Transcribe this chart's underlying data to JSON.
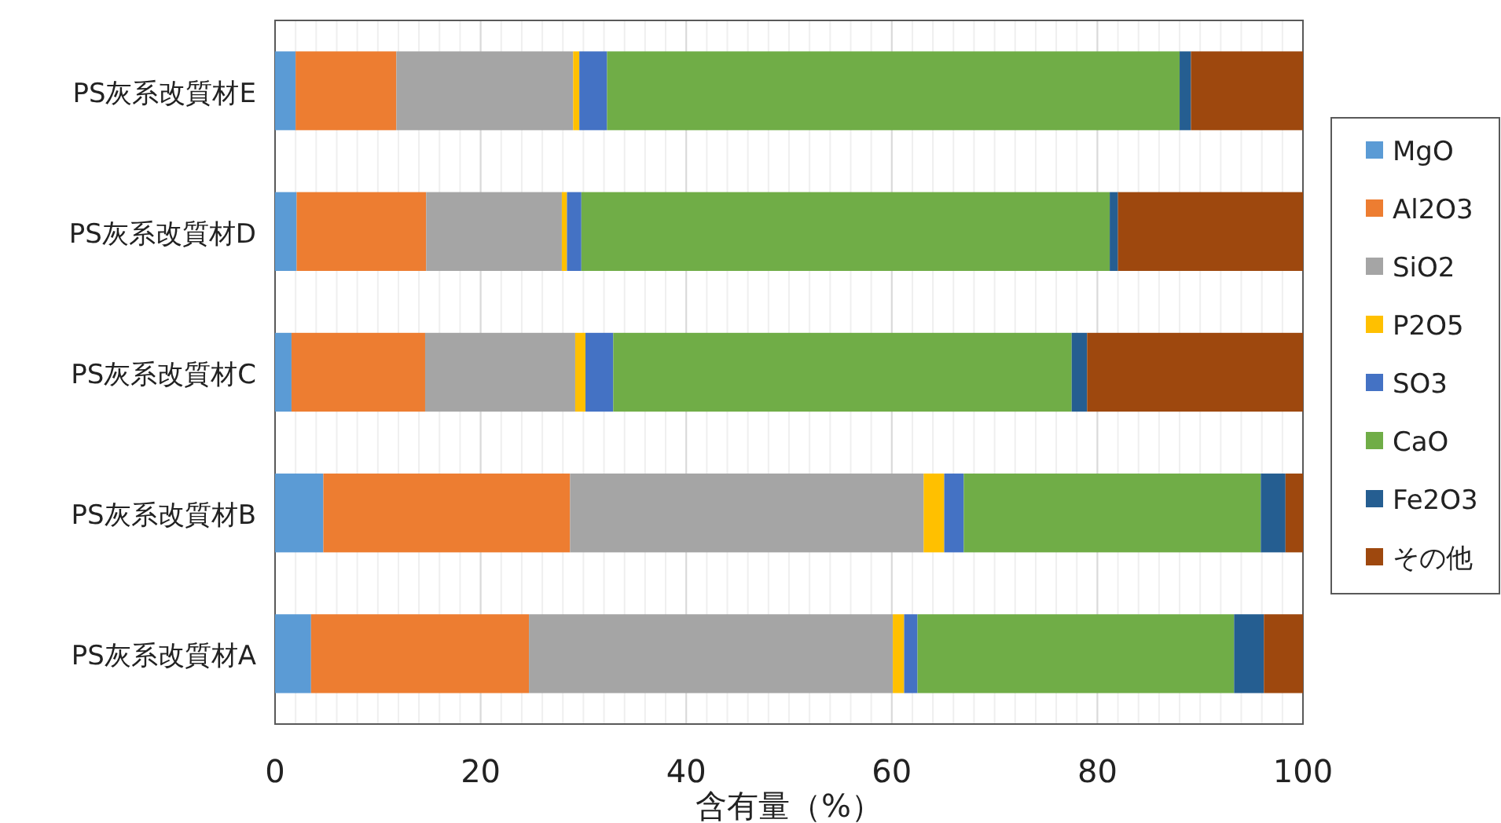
{
  "chart_data": {
    "type": "bar",
    "orientation": "horizontal",
    "stacked": true,
    "xlabel": "含有量（%）",
    "categories": [
      "PS灰系改質材E",
      "PS灰系改質材D",
      "PS灰系改質材C",
      "PS灰系改質材B",
      "PS灰系改質材A"
    ],
    "xlim": [
      0,
      100
    ],
    "xticks": [
      0,
      20,
      40,
      60,
      80,
      100
    ],
    "grid": "x",
    "legend": "right",
    "series": [
      {
        "name": "MgO",
        "color": "#5b9bd5",
        "values": [
          2.0,
          2.1,
          1.6,
          4.7,
          3.5
        ]
      },
      {
        "name": "Al2O3",
        "color": "#ed7d31",
        "values": [
          9.8,
          12.6,
          13.0,
          24.0,
          21.2
        ]
      },
      {
        "name": "SiO2",
        "color": "#a5a5a5",
        "values": [
          17.2,
          13.2,
          14.6,
          34.4,
          35.4
        ]
      },
      {
        "name": "P2O5",
        "color": "#ffc000",
        "values": [
          0.6,
          0.5,
          1.0,
          2.0,
          1.1
        ]
      },
      {
        "name": "SO3",
        "color": "#4472c4",
        "values": [
          2.7,
          1.4,
          2.7,
          1.9,
          1.3
        ]
      },
      {
        "name": "CaO",
        "color": "#70ad47",
        "values": [
          55.7,
          51.4,
          44.6,
          28.9,
          30.8
        ]
      },
      {
        "name": "Fe2O3",
        "color": "#255e91",
        "values": [
          1.1,
          0.8,
          1.5,
          2.4,
          2.9
        ]
      },
      {
        "name": "その他",
        "color": "#9e480e",
        "values": [
          10.9,
          18.0,
          21.0,
          1.7,
          3.8
        ]
      }
    ]
  }
}
